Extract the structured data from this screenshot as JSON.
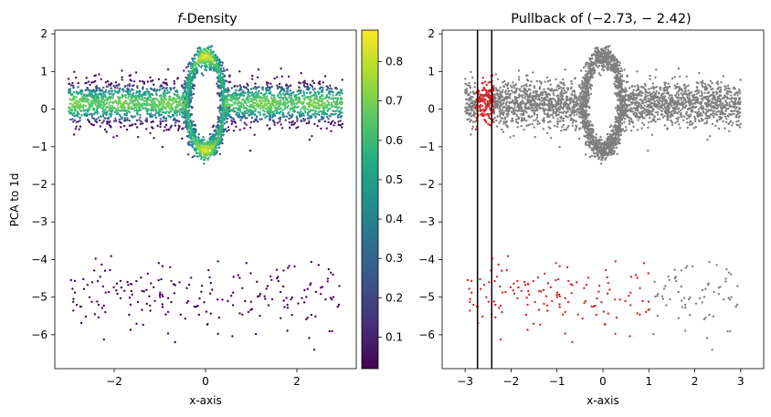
{
  "chart_data": [
    {
      "type": "scatter",
      "title": "f-Density",
      "title_italic": "f",
      "title_rest": "-Density",
      "xlabel": "x-axis",
      "ylabel": "PCA to 1d",
      "xlim": [
        -3.3,
        3.3
      ],
      "ylim": [
        -6.9,
        2.1
      ],
      "xticks": [
        -2,
        0,
        2
      ],
      "yticks": [
        2,
        1,
        0,
        -1,
        -2,
        -3,
        -4,
        -5,
        -6
      ],
      "colormap": "viridis",
      "colorbar": {
        "ticks": [
          0.8,
          0.7,
          0.6,
          0.5,
          0.4,
          0.3,
          0.2,
          0.1
        ],
        "range": [
          0.02,
          0.88
        ]
      },
      "grid": false,
      "series": [
        {
          "role": "band",
          "x_range": [
            -3.0,
            3.0
          ],
          "y_center": 0.15,
          "y_spread": 0.3,
          "density": "high (0.5-0.7)",
          "points_estimate": 2600
        },
        {
          "role": "ring",
          "center": [
            0.0,
            0.15
          ],
          "radius_x": 0.4,
          "radius_y": 1.25,
          "density": "peak 0.85 at top/bottom",
          "points_estimate": 1300
        },
        {
          "role": "outliers",
          "x_range": [
            -3.0,
            3.0
          ],
          "y_range": [
            -6.5,
            -3.5
          ],
          "density": "low (~0.03)",
          "points_estimate": 210
        }
      ]
    },
    {
      "type": "scatter",
      "title": "Pullback of (−2.73, − 2.42)",
      "xlabel": "x-axis",
      "ylabel": "",
      "xlim": [
        -3.5,
        3.5
      ],
      "ylim": [
        -6.9,
        2.1
      ],
      "xticks": [
        -3,
        -2,
        -1,
        0,
        1,
        2,
        3
      ],
      "yticks": [
        2,
        1,
        0,
        -1,
        -2,
        -3,
        -4,
        -5,
        -6
      ],
      "vlines": [
        -2.73,
        -2.42
      ],
      "grid": false,
      "colors": {
        "selected": "#d62728",
        "other": "#7f7f7f",
        "line": "#000000"
      },
      "selection": {
        "upper_x_range": [
          -2.73,
          -2.42
        ],
        "lower_x_range": [
          -3.0,
          1.0
        ]
      }
    }
  ]
}
